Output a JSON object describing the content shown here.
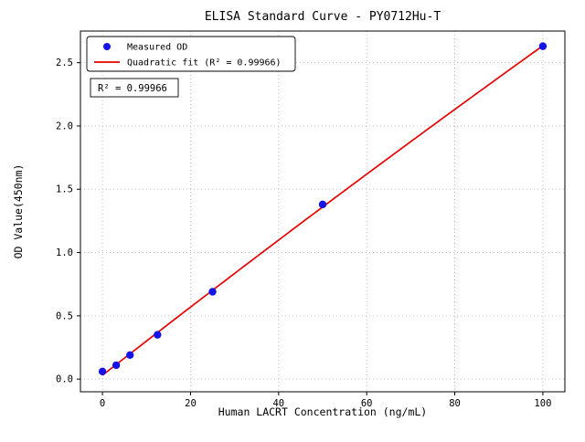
{
  "chart_data": {
    "type": "scatter",
    "title": "ELISA Standard Curve - PY0712Hu-T",
    "xlabel": "Human LACRT Concentration (ng/mL)",
    "ylabel": "OD Value(450nm)",
    "x_ticks": [
      0,
      20,
      40,
      60,
      80,
      100
    ],
    "y_ticks": [
      0.0,
      0.5,
      1.0,
      1.5,
      2.0,
      2.5
    ],
    "xlim": [
      -5,
      105
    ],
    "ylim": [
      -0.1,
      2.75
    ],
    "grid": true,
    "legend_position": "top-left",
    "annotation": "R² = 0.99966",
    "series": [
      {
        "name": "Measured OD",
        "kind": "scatter",
        "color": "#1414e6",
        "x": [
          0,
          3.125,
          6.25,
          12.5,
          25,
          50,
          100
        ],
        "y": [
          0.06,
          0.11,
          0.19,
          0.35,
          0.69,
          1.38,
          2.63
        ]
      },
      {
        "name": "Quadratic fit (R² = 0.99966)",
        "kind": "line",
        "fit": "quadratic",
        "color": "#e60000"
      }
    ]
  }
}
